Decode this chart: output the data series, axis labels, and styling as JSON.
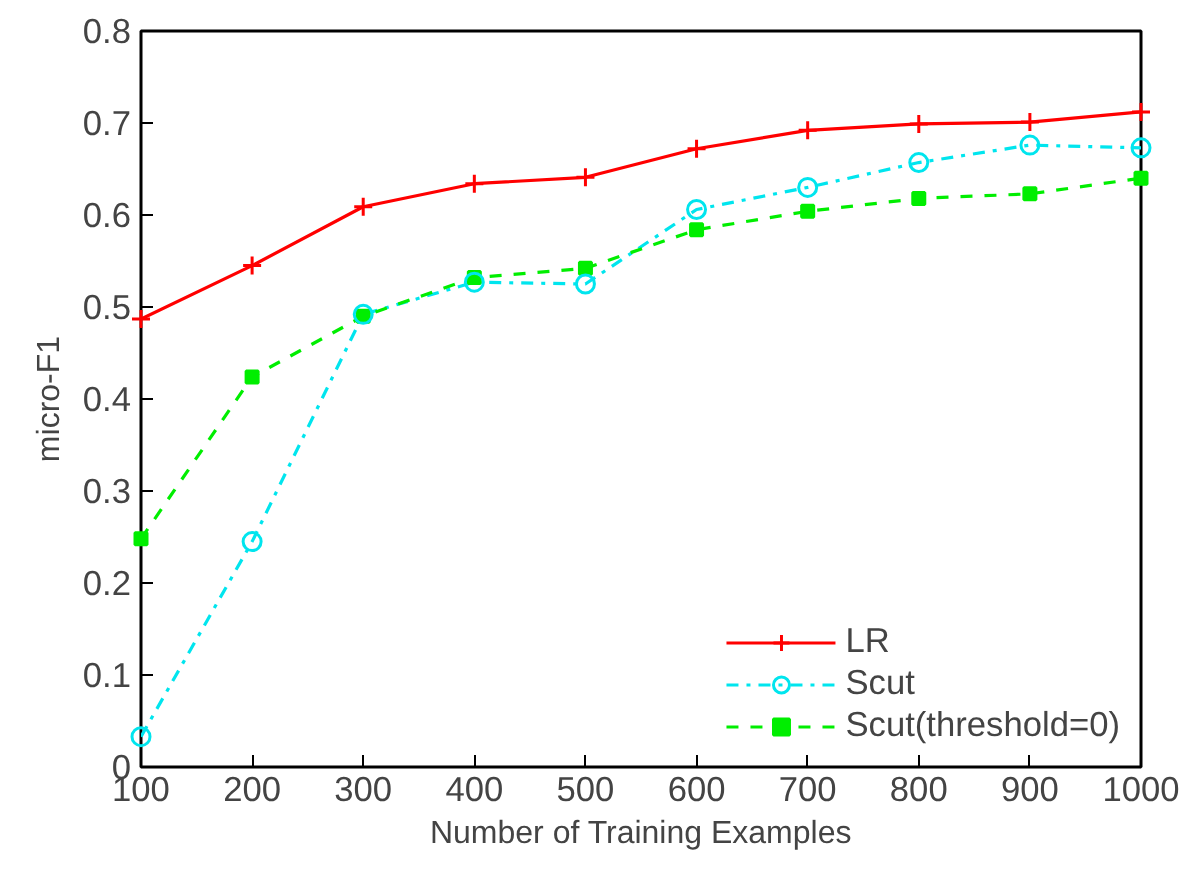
{
  "chart_data": {
    "type": "line",
    "xlabel": "Number of Training Examples",
    "ylabel": "micro-F1",
    "x": [
      100,
      200,
      300,
      400,
      500,
      600,
      700,
      800,
      900,
      1000
    ],
    "series": [
      {
        "name": "LR",
        "color": "#ff0000",
        "marker": "cross",
        "line_style": "solid",
        "values": [
          0.487,
          0.545,
          0.609,
          0.634,
          0.641,
          0.672,
          0.692,
          0.699,
          0.701,
          0.712
        ]
      },
      {
        "name": "Scut",
        "color": "#00e5ee",
        "marker": "circle",
        "line_style": "dashdot",
        "values": [
          0.033,
          0.245,
          0.492,
          0.527,
          0.525,
          0.606,
          0.63,
          0.657,
          0.676,
          0.673
        ]
      },
      {
        "name": "Scut(threshold=0)",
        "color": "#00ee00",
        "marker": "square",
        "line_style": "dashed",
        "values": [
          0.248,
          0.424,
          0.49,
          0.532,
          0.542,
          0.584,
          0.604,
          0.618,
          0.623,
          0.64
        ]
      }
    ],
    "xlim": [
      100,
      1000
    ],
    "ylim": [
      0,
      0.8
    ],
    "xticks": [
      100,
      200,
      300,
      400,
      500,
      600,
      700,
      800,
      900,
      1000
    ],
    "yticks": [
      0,
      {
        "value": 0.1,
        "label": "0.1"
      },
      {
        "value": 0.2,
        "label": "0.2"
      },
      {
        "value": 0.3,
        "label": "0.3"
      },
      {
        "value": 0.4,
        "label": "0.4"
      },
      {
        "value": 0.5,
        "label": "0.5"
      },
      {
        "value": 0.6,
        "label": "0.6"
      },
      {
        "value": 0.7,
        "label": "0.7"
      },
      {
        "value": 0.8,
        "label": "0.8"
      }
    ],
    "grid": false,
    "legend": "bottom right"
  }
}
